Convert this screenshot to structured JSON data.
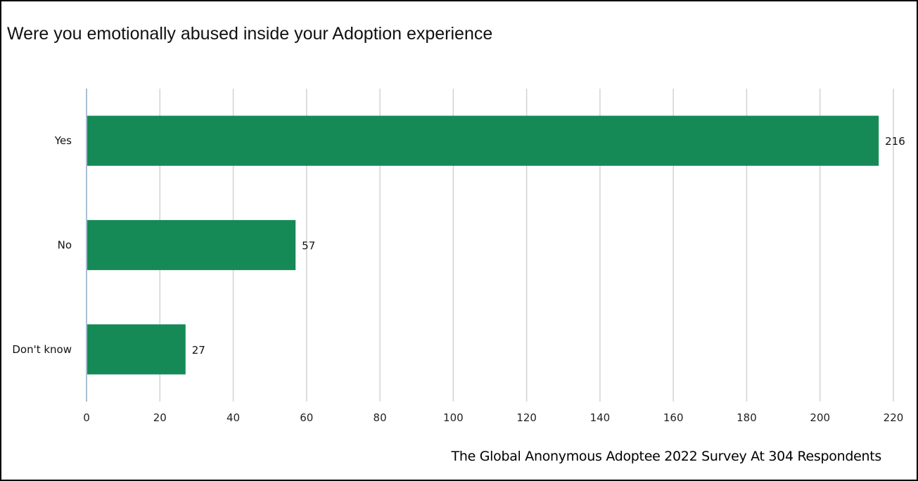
{
  "chart_data": {
    "type": "bar",
    "orientation": "horizontal",
    "title": "Were you emotionally abused inside your Adoption experience",
    "categories": [
      "Yes",
      "No",
      "Don't know"
    ],
    "values": [
      216,
      57,
      27
    ],
    "data_labels": [
      "216",
      "57",
      "27"
    ],
    "xlim": [
      0,
      220
    ],
    "x_ticks": [
      0,
      20,
      40,
      60,
      80,
      100,
      120,
      140,
      160,
      180,
      200,
      220
    ],
    "grid": true,
    "legend": "none",
    "bar_color": "#158a57",
    "grid_color": "#d0d3d6",
    "axis_color": "#a9bfcf"
  },
  "footer": {
    "note": "The Global Anonymous Adoptee 2022 Survey At 304 Respondents"
  }
}
